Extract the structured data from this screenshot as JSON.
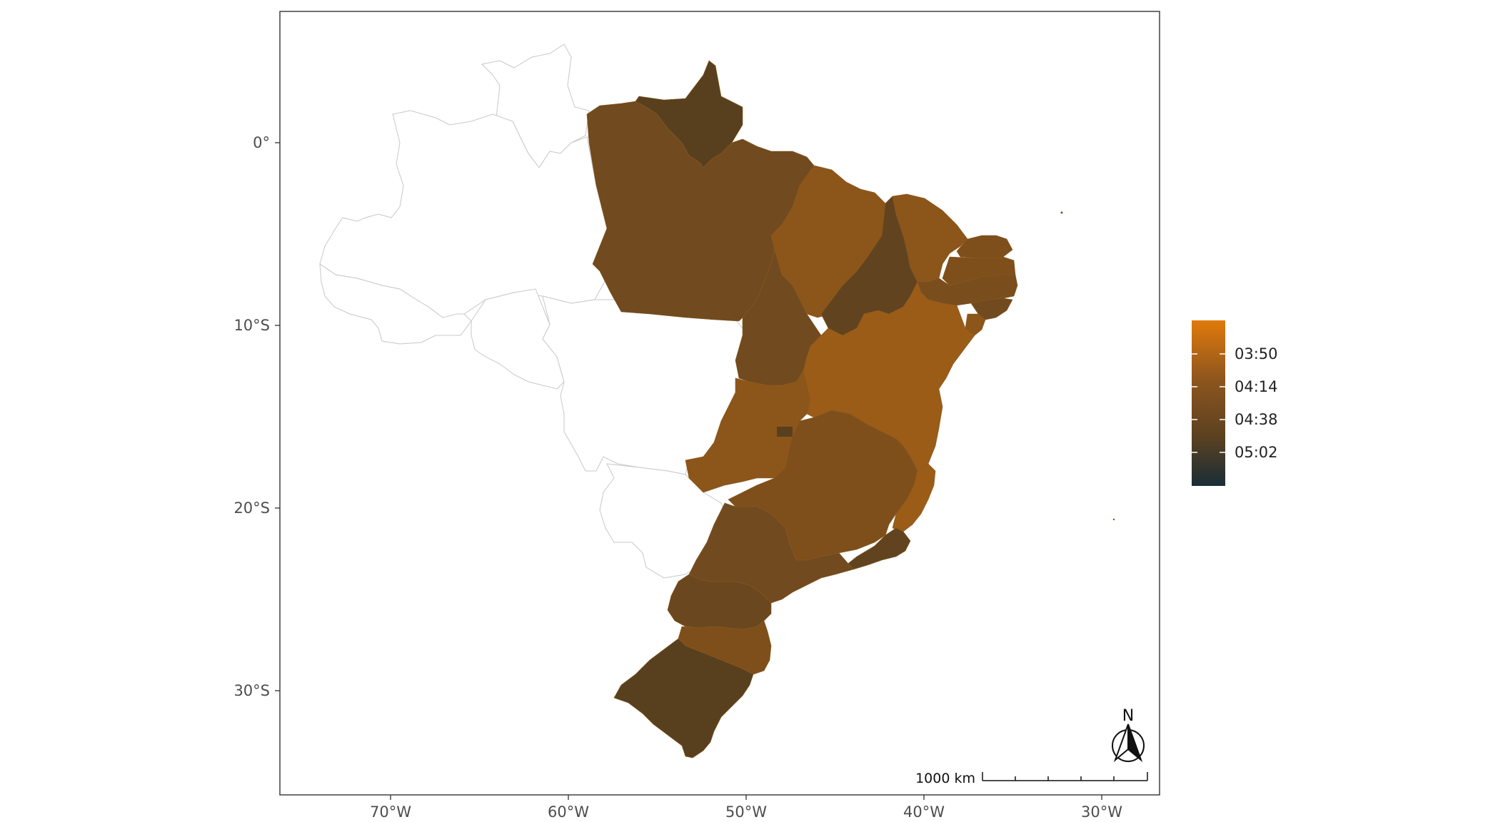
{
  "map": {
    "axes": {
      "x_ticks": [
        "70°W",
        "60°W",
        "50°W",
        "40°W",
        "30°W"
      ],
      "y_ticks": [
        "0°",
        "10°S",
        "20°S",
        "30°S"
      ]
    },
    "legend": {
      "labels": [
        "03:50",
        "04:14",
        "04:38",
        "05:02"
      ],
      "gradient_colors": [
        "#e07a0a",
        "#8f561e",
        "#5c4120",
        "#1a2d36"
      ]
    },
    "scale_bar": {
      "label": "1000 km"
    },
    "north_arrow": {
      "label": "N"
    },
    "colors": {
      "dark": "#58401f",
      "mid_dark": "#714a1f",
      "mid": "#7e4f1b",
      "light": "#8f561a",
      "lighter": "#9a5c17",
      "empty_stroke": "#c8c8c8"
    }
  }
}
